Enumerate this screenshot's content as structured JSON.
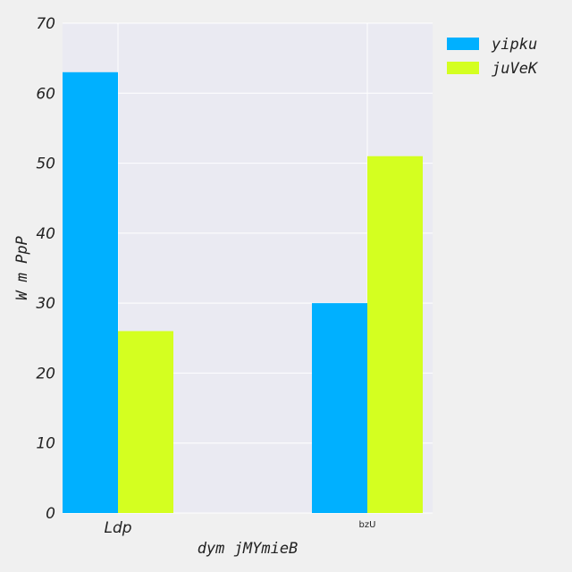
{
  "chart_data": {
    "type": "bar",
    "categories": [
      "Ldp",
      "bzU"
    ],
    "series": [
      {
        "name": "yipku",
        "values": [
          63,
          30
        ],
        "color": "#00b0ff"
      },
      {
        "name": "juVeK",
        "values": [
          26,
          51
        ],
        "color": "#d4ff20"
      }
    ],
    "xlabel": "dym jMYmieB",
    "ylabel": "W m PpP",
    "ylim": [
      0,
      70
    ],
    "yticks": [
      "0",
      "10",
      "20",
      "30",
      "40",
      "50",
      "60",
      "70"
    ],
    "grid": true,
    "legend_position": "top-right, outside plot",
    "plot_background": "#eaeaf2"
  }
}
